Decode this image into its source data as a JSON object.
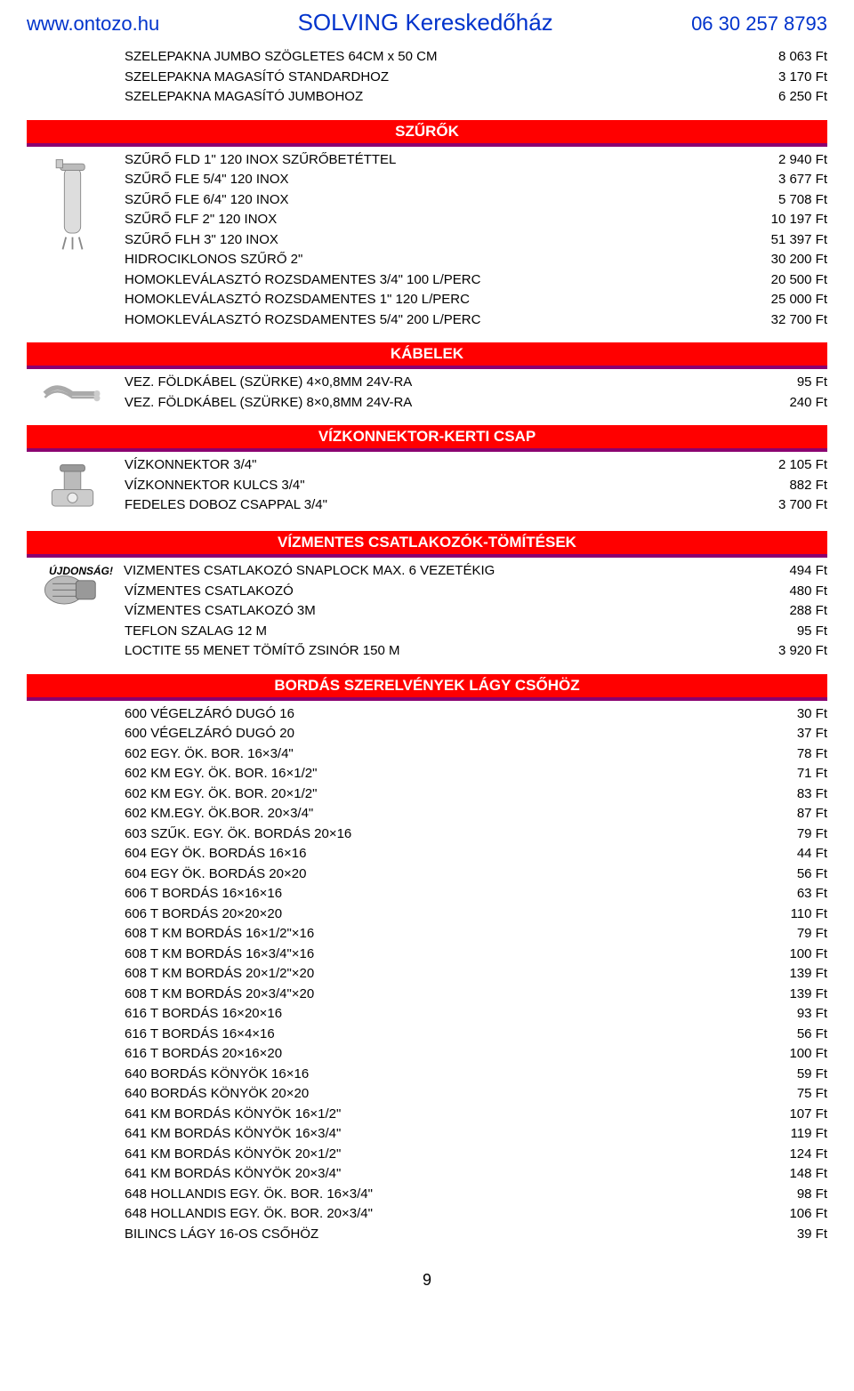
{
  "header": {
    "left": "www.ontozo.hu",
    "center": "SOLVING Kereskedőház",
    "right": "06 30 257 8793"
  },
  "colors": {
    "header_text": "#0033cc",
    "red_bar_bg": "#ff0000",
    "red_bar_underline": "#8a0070",
    "text": "#000000"
  },
  "top_items": [
    {
      "label": "SZELEPAKNA JUMBO SZÖGLETES     64CM x 50 CM",
      "price": "8 063 Ft"
    },
    {
      "label": "SZELEPAKNA MAGASÍTÓ STANDARDHOZ",
      "price": "3 170 Ft"
    },
    {
      "label": "SZELEPAKNA MAGASÍTÓ JUMBOHOZ",
      "price": "6 250 Ft"
    }
  ],
  "sections": [
    {
      "title": "SZŰRŐK",
      "icon": "filter-tank",
      "items": [
        {
          "label": "SZŰRŐ FLD 1\" 120 INOX SZŰRŐBETÉTTEL",
          "price": "2 940 Ft"
        },
        {
          "label": "SZŰRŐ FLE 5/4\" 120 INOX",
          "price": "3 677 Ft"
        },
        {
          "label": "SZŰRŐ FLE 6/4\" 120 INOX",
          "price": "5 708 Ft"
        },
        {
          "label": "SZŰRŐ FLF 2\" 120 INOX",
          "price": "10 197 Ft"
        },
        {
          "label": "SZŰRŐ FLH 3\" 120 INOX",
          "price": "51 397 Ft"
        },
        {
          "label": "HIDROCIKLONOS SZŰRŐ 2\"",
          "price": "30 200 Ft"
        },
        {
          "label": "HOMOKLEVÁLASZTÓ ROZSDAMENTES 3/4\" 100 L/PERC",
          "price": "20 500 Ft"
        },
        {
          "label": "HOMOKLEVÁLASZTÓ ROZSDAMENTES 1\" 120 L/PERC",
          "price": "25 000 Ft"
        },
        {
          "label": "HOMOKLEVÁLASZTÓ ROZSDAMENTES 5/4\" 200 L/PERC",
          "price": "32 700 Ft"
        }
      ]
    },
    {
      "title": "KÁBELEK",
      "icon": "cable",
      "items": [
        {
          "label": "VEZ. FÖLDKÁBEL (SZÜRKE) 4×0,8MM 24V-RA",
          "price": "95 Ft"
        },
        {
          "label": "VEZ. FÖLDKÁBEL (SZÜRKE) 8×0,8MM 24V-RA",
          "price": "240 Ft"
        }
      ]
    },
    {
      "title": "VÍZKONNEKTOR-KERTI CSAP",
      "icon": "valve",
      "items": [
        {
          "label": "VÍZKONNEKTOR 3/4\"",
          "price": "2 105 Ft"
        },
        {
          "label": "VÍZKONNEKTOR KULCS 3/4\"",
          "price": "882 Ft"
        },
        {
          "label": "FEDELES DOBOZ CSAPPAL 3/4\"",
          "price": "3 700 Ft"
        }
      ]
    },
    {
      "title": "VÍZMENTES CSATLAKOZÓK-TÖMÍTÉSEK",
      "icon": "connector",
      "items": [
        {
          "badge": "ÚJDONSÁG!",
          "label": "VIZMENTES CSATLAKOZÓ SNAPLOCK MAX. 6 VEZETÉKIG",
          "price": "494 Ft"
        },
        {
          "label": "VÍZMENTES CSATLAKOZÓ",
          "price": "480 Ft"
        },
        {
          "label": "VÍZMENTES CSATLAKOZÓ 3M",
          "price": "288 Ft"
        },
        {
          "label": "TEFLON SZALAG 12 M",
          "price": "95 Ft"
        },
        {
          "label": "LOCTITE 55 MENET TÖMÍTŐ ZSINÓR 150 M",
          "price": "3 920 Ft"
        }
      ]
    },
    {
      "title": "BORDÁS SZERELVÉNYEK LÁGY CSŐHÖZ",
      "icon": "",
      "items": [
        {
          "label": "600 VÉGELZÁRÓ DUGÓ 16",
          "price": "30 Ft"
        },
        {
          "label": "600 VÉGELZÁRÓ DUGÓ 20",
          "price": "37 Ft"
        },
        {
          "label": "602 EGY. ÖK. BOR. 16×3/4\"",
          "price": "78 Ft"
        },
        {
          "label": "602 KM EGY. ÖK. BOR. 16×1/2\"",
          "price": "71 Ft"
        },
        {
          "label": "602 KM EGY. ÖK. BOR. 20×1/2\"",
          "price": "83 Ft"
        },
        {
          "label": "602 KM.EGY. ÖK.BOR. 20×3/4\"",
          "price": "87 Ft"
        },
        {
          "label": "603 SZŰK. EGY. ÖK. BORDÁS 20×16",
          "price": "79 Ft"
        },
        {
          "label": "604 EGY ÖK. BORDÁS 16×16",
          "price": "44 Ft"
        },
        {
          "label": "604 EGY ÖK. BORDÁS 20×20",
          "price": "56 Ft"
        },
        {
          "label": "606 T BORDÁS 16×16×16",
          "price": "63 Ft"
        },
        {
          "label": "606 T BORDÁS 20×20×20",
          "price": "110 Ft"
        },
        {
          "label": "608 T KM BORDÁS 16×1/2\"×16",
          "price": "79 Ft"
        },
        {
          "label": "608 T KM BORDÁS 16×3/4\"×16",
          "price": "100 Ft"
        },
        {
          "label": "608 T KM BORDÁS 20×1/2\"×20",
          "price": "139 Ft"
        },
        {
          "label": "608 T KM BORDÁS 20×3/4\"×20",
          "price": "139 Ft"
        },
        {
          "label": "616 T BORDÁS 16×20×16",
          "price": "93 Ft"
        },
        {
          "label": "616 T BORDÁS 16×4×16",
          "price": "56 Ft"
        },
        {
          "label": "616 T BORDÁS 20×16×20",
          "price": "100 Ft"
        },
        {
          "label": "640 BORDÁS KÖNYÖK 16×16",
          "price": "59 Ft"
        },
        {
          "label": "640 BORDÁS KÖNYÖK 20×20",
          "price": "75 Ft"
        },
        {
          "label": "641 KM BORDÁS KÖNYÖK 16×1/2\"",
          "price": "107 Ft"
        },
        {
          "label": "641 KM BORDÁS KÖNYÖK 16×3/4\"",
          "price": "119 Ft"
        },
        {
          "label": "641 KM BORDÁS KÖNYÖK 20×1/2\"",
          "price": "124 Ft"
        },
        {
          "label": "641 KM BORDÁS KÖNYÖK 20×3/4\"",
          "price": "148 Ft"
        },
        {
          "label": "648 HOLLANDIS EGY. ÖK. BOR. 16×3/4\"",
          "price": "98 Ft"
        },
        {
          "label": "648 HOLLANDIS EGY. ÖK. BOR. 20×3/4\"",
          "price": "106 Ft"
        },
        {
          "label": "BILINCS LÁGY 16-OS CSŐHÖZ",
          "price": "39 Ft"
        }
      ]
    }
  ],
  "page_number": "9"
}
